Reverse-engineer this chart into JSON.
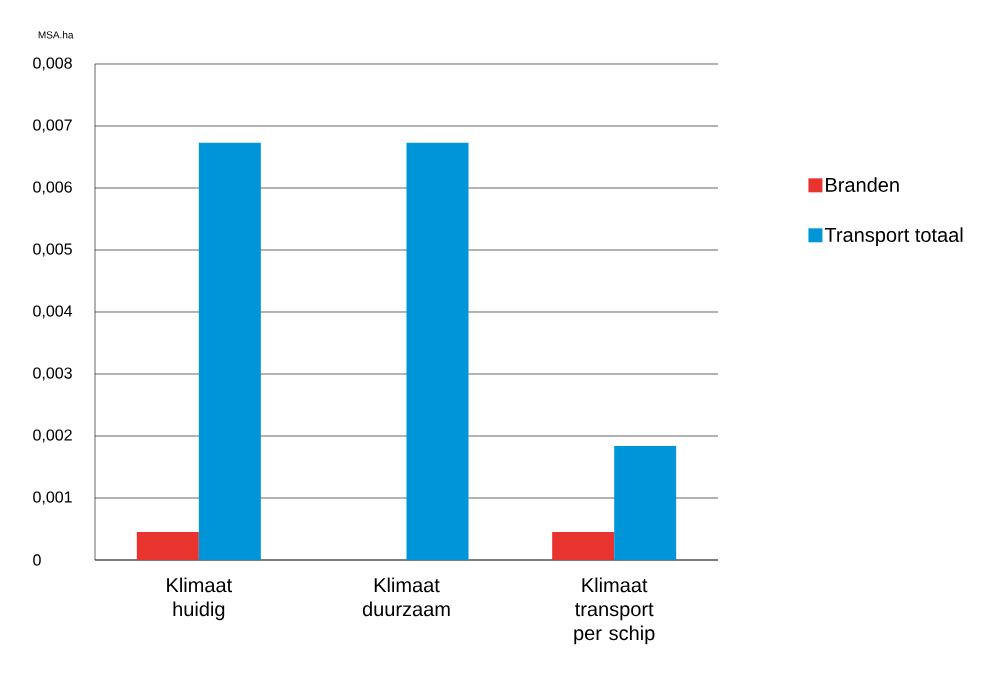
{
  "chart_data": {
    "type": "bar",
    "ylabel": "MSA.ha",
    "categories": [
      "Klimaat huidig",
      "Klimaat duurzaam",
      "Klimaat transport per schip"
    ],
    "series": [
      {
        "name": "Branden",
        "color": "#e8332e",
        "values": [
          0.00045,
          0,
          0.00045
        ]
      },
      {
        "name": "Transport totaal",
        "color": "#0095d9",
        "values": [
          0.00673,
          0.00673,
          0.00184
        ]
      }
    ],
    "ylim": [
      0,
      0.008
    ],
    "yticks": [
      0,
      {
        "value": 0.001,
        "label": "0,001"
      },
      {
        "value": 0.002,
        "label": "0,002"
      },
      {
        "value": 0.003,
        "label": "0,003"
      },
      {
        "value": 0.004,
        "label": "0,004"
      },
      {
        "value": 0.005,
        "label": "0,005"
      },
      {
        "value": 0.006,
        "label": "0,006"
      },
      {
        "value": 0.007,
        "label": "0,007"
      },
      {
        "value": 0.008,
        "label": "0,008"
      }
    ],
    "grid": "y",
    "legend": "right"
  }
}
